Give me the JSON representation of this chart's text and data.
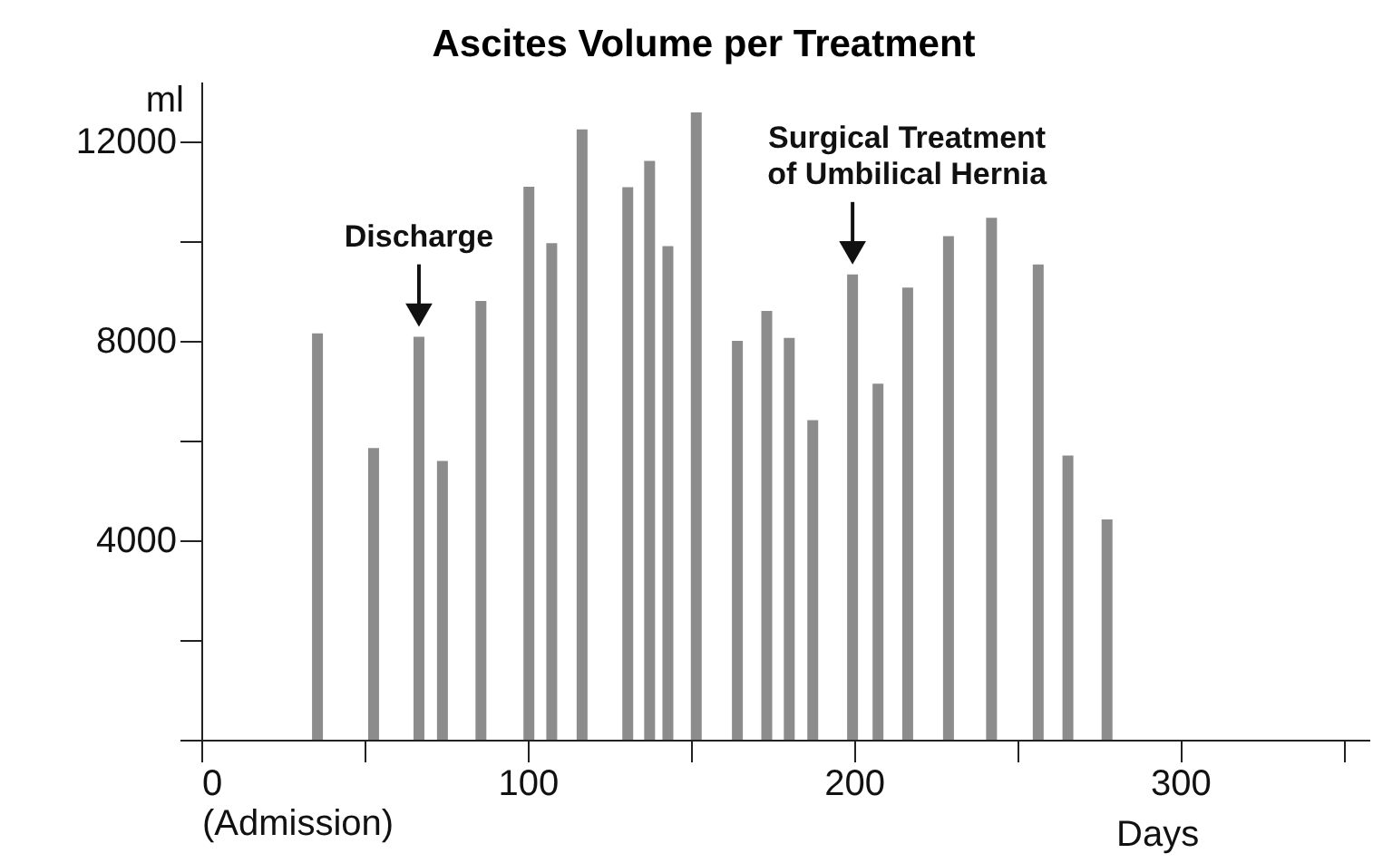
{
  "chart_data": {
    "type": "bar",
    "title": "Ascites Volume per Treatment",
    "xlabel": "Days",
    "ylabel": "ml",
    "x": [
      35.6,
      52.8,
      66.7,
      73.9,
      85.7,
      100.4,
      107.4,
      116.7,
      130.7,
      137.4,
      143,
      151.7,
      164.3,
      173.3,
      180.2,
      187.4,
      199.6,
      207.4,
      216.5,
      229,
      242.2,
      256.5,
      265.6,
      277.6
    ],
    "values": [
      8150,
      5850,
      8080,
      5590,
      8800,
      11090,
      9960,
      12240,
      11080,
      11610,
      9900,
      12580,
      8000,
      8600,
      8060,
      6410,
      9330,
      7140,
      9070,
      10100,
      10470,
      9530,
      5700,
      4420
    ],
    "color": "#8c8c8c",
    "xlim": [
      0,
      358
    ],
    "xticks": [
      {
        "value": 0,
        "label": "0\n(Admission)"
      },
      {
        "value": 50,
        "label": null
      },
      100,
      {
        "value": 150,
        "label": null
      },
      200,
      {
        "value": 250,
        "label": null
      },
      300,
      {
        "value": 350,
        "label": null
      }
    ],
    "ylim": [
      0,
      13200
    ],
    "yticks": [
      {
        "value": 0,
        "label": null
      },
      {
        "value": 2000,
        "label": null
      },
      4000,
      {
        "value": 6000,
        "label": null
      },
      8000,
      {
        "value": 10000,
        "label": null
      },
      12000
    ],
    "annotations": [
      {
        "text": "Discharge",
        "x": 66.7,
        "y": 8080
      },
      {
        "text": "Surgical Treatment\nof Umbilical Hernia",
        "x": 199.6,
        "y": 9330
      }
    ],
    "grid": false
  }
}
